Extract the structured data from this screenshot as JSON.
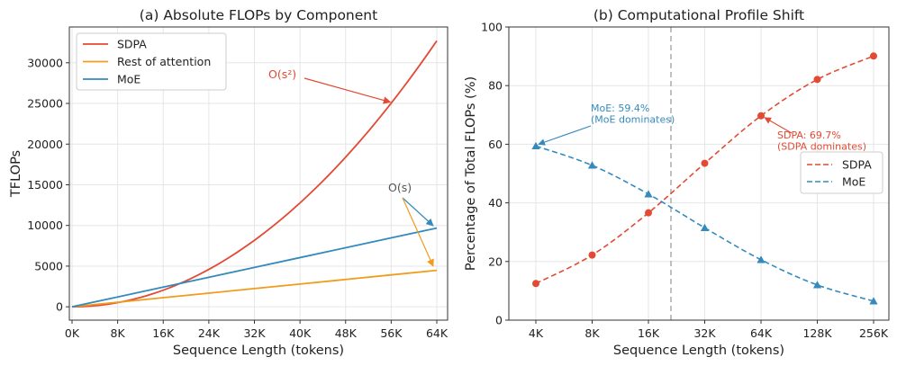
{
  "colors": {
    "sdpa": "#e24a33",
    "rest": "#f09c1c",
    "moe": "#348abd",
    "vline": "#b0b0b0",
    "gray_text": "#555555"
  },
  "chart_data": [
    {
      "type": "line",
      "title": "(a) Absolute FLOPs by Component",
      "xlabel": "Sequence Length (tokens)",
      "ylabel": "TFLOPs",
      "xlim": [
        0,
        65536
      ],
      "ylim": [
        -1640,
        34400
      ],
      "grid": true,
      "legend_position": "upper-left",
      "xticks": [
        {
          "value": 0,
          "label": "0K"
        },
        {
          "value": 8192,
          "label": "8K"
        },
        {
          "value": 16384,
          "label": "16K"
        },
        {
          "value": 24576,
          "label": "24K"
        },
        {
          "value": 32768,
          "label": "32K"
        },
        {
          "value": 40960,
          "label": "40K"
        },
        {
          "value": 49152,
          "label": "48K"
        },
        {
          "value": 57344,
          "label": "56K"
        },
        {
          "value": 65536,
          "label": "64K"
        }
      ],
      "yticks": [
        {
          "value": 0,
          "label": "0"
        },
        {
          "value": 5000,
          "label": "5000"
        },
        {
          "value": 10000,
          "label": "10000"
        },
        {
          "value": 15000,
          "label": "15000"
        },
        {
          "value": 20000,
          "label": "20000"
        },
        {
          "value": 25000,
          "label": "25000"
        },
        {
          "value": 30000,
          "label": "30000"
        }
      ],
      "x": [
        0,
        8192,
        16384,
        24576,
        32768,
        40960,
        49152,
        57344,
        65536
      ],
      "series": [
        {
          "name": "SDPA",
          "color_key": "sdpa",
          "values": [
            0,
            500,
            2050,
            4600,
            8180,
            12780,
            18400,
            25050,
            32700
          ]
        },
        {
          "name": "Rest of attention",
          "color_key": "rest",
          "values": [
            0,
            560,
            1120,
            1680,
            2240,
            2800,
            3360,
            3920,
            4480
          ]
        },
        {
          "name": "MoE",
          "color_key": "moe",
          "values": [
            0,
            1210,
            2420,
            3630,
            4840,
            6050,
            7260,
            8470,
            9680
          ]
        }
      ],
      "annotations": [
        {
          "text": "O(s²)",
          "color_key": "sdpa",
          "text_at": [
            42000,
            28400
          ],
          "arrows_to": [
            [
              57344,
              25050
            ]
          ]
        },
        {
          "text": "O(s)",
          "color_key": "gray_text",
          "text_at": [
            60800,
            14200
          ],
          "arrows_to": [
            [
              65300,
              9780
            ],
            [
              65300,
              4520
            ]
          ]
        }
      ]
    },
    {
      "type": "line",
      "title": "(b) Computational Profile Shift",
      "xlabel": "Sequence Length (tokens)",
      "ylabel": "Percentage of Total FLOPs (%)",
      "xscale": "log2",
      "ylim": [
        0,
        100
      ],
      "grid": true,
      "legend_position": "center-right",
      "categories": [
        "4K",
        "8K",
        "16K",
        "32K",
        "64K",
        "128K",
        "256K"
      ],
      "yticks": [
        {
          "value": 0,
          "label": "0"
        },
        {
          "value": 20,
          "label": "20"
        },
        {
          "value": 40,
          "label": "40"
        },
        {
          "value": 60,
          "label": "60"
        },
        {
          "value": 80,
          "label": "80"
        },
        {
          "value": 100,
          "label": "100"
        }
      ],
      "crossover_index": 2.4,
      "series": [
        {
          "name": "SDPA",
          "color_key": "sdpa",
          "marker": "circle",
          "values": [
            12.5,
            22.2,
            36.6,
            53.5,
            69.7,
            82.1,
            90.1
          ]
        },
        {
          "name": "MoE",
          "color_key": "moe",
          "marker": "triangle",
          "values": [
            59.4,
            52.8,
            43.0,
            31.5,
            20.6,
            12.0,
            6.5
          ]
        }
      ],
      "annotations": [
        {
          "lines": [
            "MoE: 59.4%",
            "(MoE dominates)"
          ],
          "color_key": "moe",
          "point": [
            0,
            59.4
          ],
          "text_at": [
            1.02,
            72.2
          ]
        },
        {
          "lines": [
            "SDPA: 69.7%",
            "(SDPA dominates)"
          ],
          "color_key": "sdpa",
          "point": [
            4,
            69.7
          ],
          "text_at": [
            4.33,
            62.2
          ]
        }
      ]
    }
  ]
}
